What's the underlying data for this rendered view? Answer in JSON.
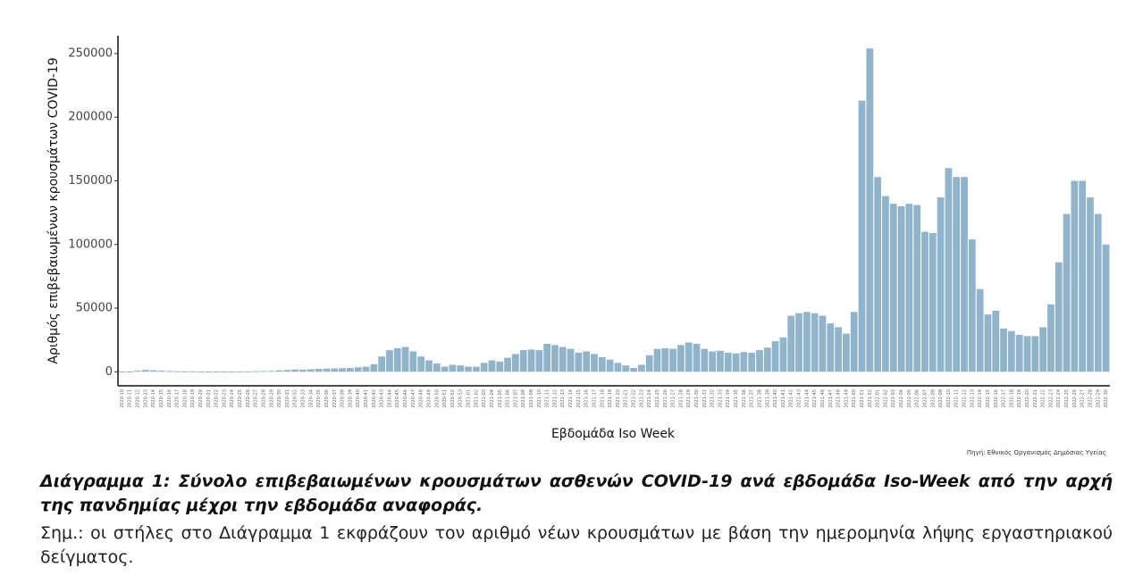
{
  "chart_data": {
    "type": "bar",
    "y_label": "Αριθμός επιβεβαιωμένων κρουσμάτων COVID-19",
    "x_label": "Εβδομάδα Iso Week",
    "source": "Πηγή: Εθνικός Οργανισμός Δημόσιας Υγείας",
    "color": "#8fb4cc",
    "ylim": [
      -11000,
      264000
    ],
    "yticks": [
      0,
      50000,
      100000,
      150000,
      200000,
      250000
    ],
    "categories": [
      "2020-10",
      "2020-11",
      "2020-12",
      "2020-13",
      "2020-14",
      "2020-15",
      "2020-16",
      "2020-17",
      "2020-18",
      "2020-19",
      "2020-20",
      "2020-21",
      "2020-22",
      "2020-23",
      "2020-24",
      "2020-25",
      "2020-26",
      "2020-27",
      "2020-28",
      "2020-29",
      "2020-30",
      "2020-31",
      "2020-32",
      "2020-33",
      "2020-34",
      "2020-35",
      "2020-36",
      "2020-37",
      "2020-38",
      "2020-39",
      "2020-40",
      "2020-41",
      "2020-42",
      "2020-43",
      "2020-44",
      "2020-45",
      "2020-46",
      "2020-47",
      "2020-48",
      "2020-49",
      "2020-50",
      "2020-51",
      "2020-52",
      "2020-53",
      "2021-01",
      "2021-02",
      "2021-03",
      "2021-04",
      "2021-05",
      "2021-06",
      "2021-07",
      "2021-08",
      "2021-09",
      "2021-10",
      "2021-11",
      "2021-12",
      "2021-13",
      "2021-14",
      "2021-15",
      "2021-16",
      "2021-17",
      "2021-18",
      "2021-19",
      "2021-20",
      "2021-21",
      "2021-22",
      "2021-23",
      "2021-24",
      "2021-25",
      "2021-26",
      "2021-27",
      "2021-28",
      "2021-29",
      "2021-30",
      "2021-31",
      "2021-32",
      "2021-33",
      "2021-34",
      "2021-35",
      "2021-36",
      "2021-37",
      "2021-38",
      "2021-39",
      "2021-40",
      "2021-41",
      "2021-42",
      "2021-43",
      "2021-44",
      "2021-45",
      "2021-46",
      "2021-47",
      "2021-48",
      "2021-49",
      "2021-50",
      "2021-51",
      "2021-52",
      "2022-01",
      "2022-02",
      "2022-03",
      "2022-04",
      "2022-05",
      "2022-06",
      "2022-07",
      "2022-08",
      "2022-09",
      "2022-10",
      "2022-11",
      "2022-12",
      "2022-13",
      "2022-14",
      "2022-15",
      "2022-16",
      "2022-17",
      "2022-18",
      "2022-19",
      "2022-20",
      "2022-21",
      "2022-22",
      "2022-23",
      "2022-24",
      "2022-25",
      "2022-26",
      "2022-27",
      "2022-28",
      "2022-29",
      "2022-30"
    ],
    "values": [
      200,
      300,
      800,
      1500,
      1200,
      900,
      600,
      500,
      400,
      400,
      300,
      300,
      300,
      250,
      250,
      300,
      400,
      500,
      600,
      700,
      1200,
      1500,
      1800,
      1700,
      2000,
      2300,
      2500,
      2700,
      2800,
      3000,
      3500,
      4000,
      6000,
      12000,
      17000,
      18500,
      19500,
      16000,
      12000,
      9000,
      6500,
      4000,
      5500,
      5000,
      4000,
      4000,
      7000,
      9000,
      8000,
      11000,
      14000,
      17000,
      17500,
      17000,
      22000,
      21000,
      19500,
      18000,
      15000,
      16000,
      14000,
      11500,
      9500,
      7000,
      5000,
      3000,
      5500,
      13000,
      18000,
      18500,
      18000,
      21000,
      23000,
      22000,
      18000,
      16000,
      16500,
      15000,
      14500,
      15500,
      15000,
      17000,
      19000,
      24000,
      27000,
      44000,
      46000,
      47000,
      46000,
      44000,
      38000,
      35000,
      30000,
      47000,
      213000,
      254000,
      153000,
      138000,
      132000,
      130000,
      132000,
      131000,
      110000,
      109000,
      137000,
      160000,
      153000,
      153000,
      104000,
      65000,
      45000,
      48000,
      34000,
      32000,
      29000,
      28000,
      28000,
      35000,
      53000,
      86000,
      124000,
      150000,
      150000,
      137000,
      124000,
      100000
    ]
  },
  "caption": "Διάγραμμα 1: Σύνολο επιβεβαιωμένων κρουσμάτων ασθενών COVID-19 ανά εβδομάδα Iso-Week από την αρχή της πανδημίας μέχρι την εβδομάδα αναφοράς.",
  "note": "Σημ.: οι στήλες στο Διάγραμμα 1 εκφράζουν τον αριθμό νέων κρουσμάτων με βάση την ημερομηνία λήψης εργαστηριακού δείγματος."
}
